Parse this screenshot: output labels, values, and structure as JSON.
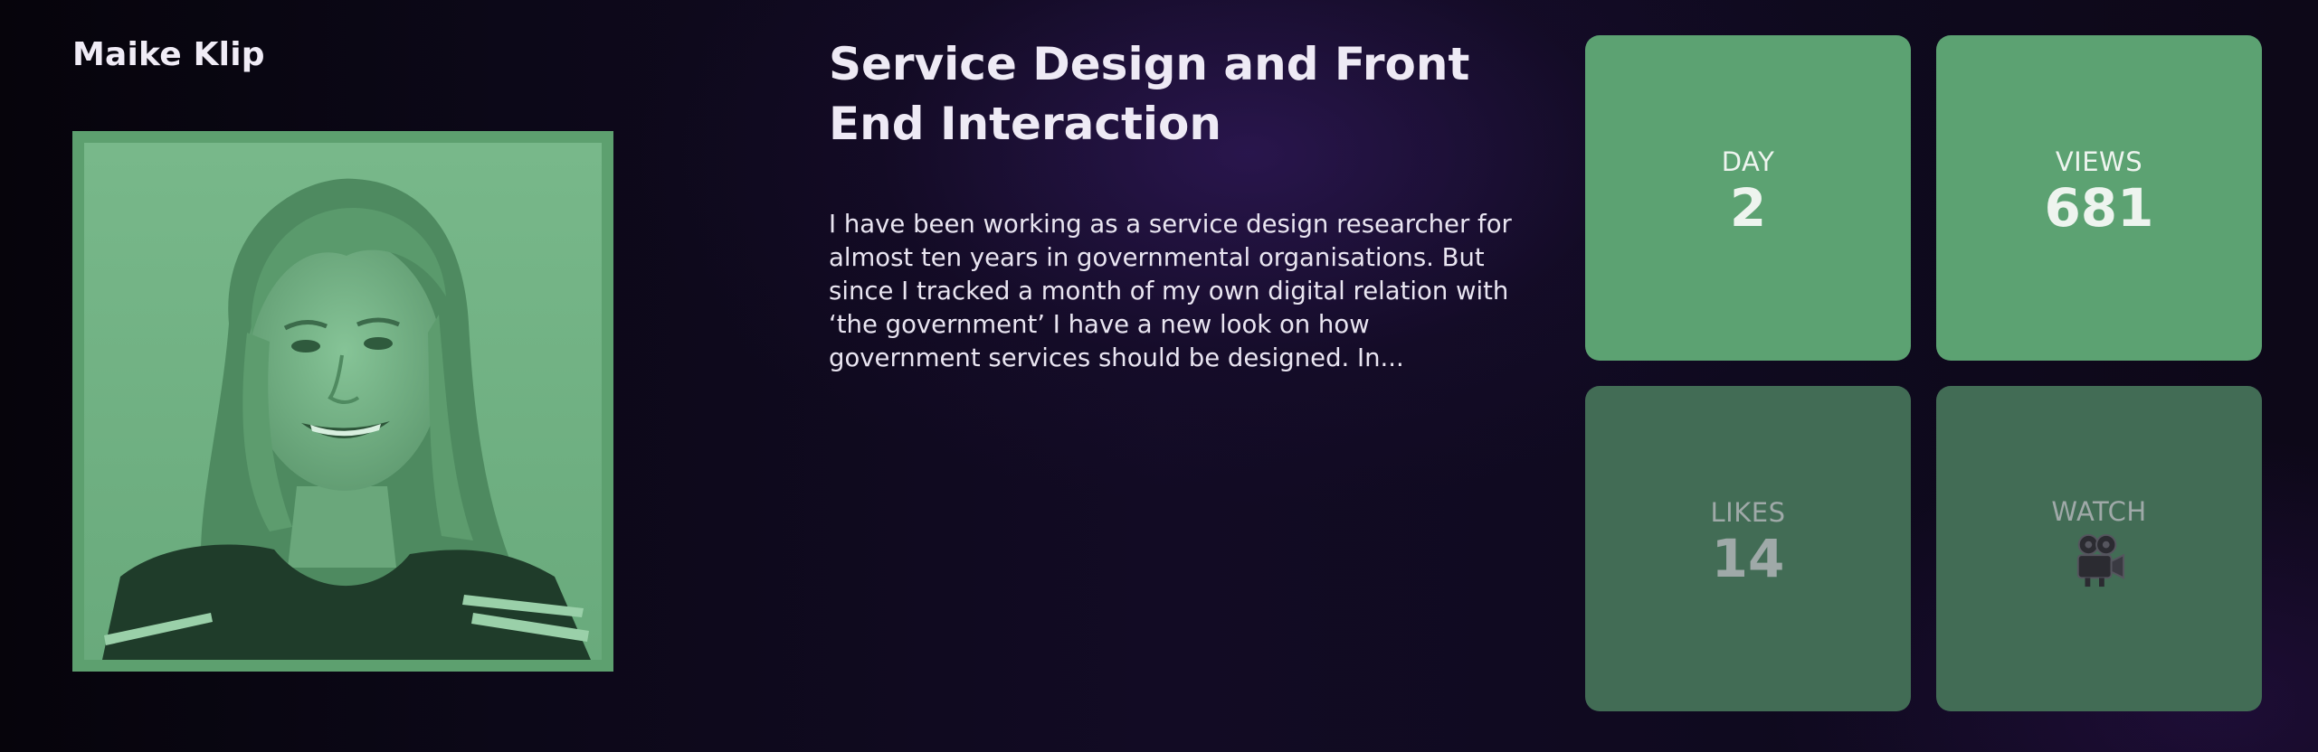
{
  "speaker": {
    "name": "Maike Klip"
  },
  "talk": {
    "title": "Service Design and Front End Interaction",
    "description": "I have been working as a service design researcher for almost ten years in governmental organisations. But since I tracked a month of my own digital relation with ‘the government’ I have a new look on how government services should be designed. In..."
  },
  "stats": {
    "day": {
      "label": "DAY",
      "value": "2"
    },
    "views": {
      "label": "VIEWS",
      "value": "681"
    },
    "likes": {
      "label": "LIKES",
      "value": "14"
    },
    "watch": {
      "label": "WATCH",
      "icon": "movie-camera-icon"
    }
  },
  "colors": {
    "accent_green": "#5ca272",
    "dim_green": "#426c55",
    "background_dark": "#0f0a1f"
  }
}
